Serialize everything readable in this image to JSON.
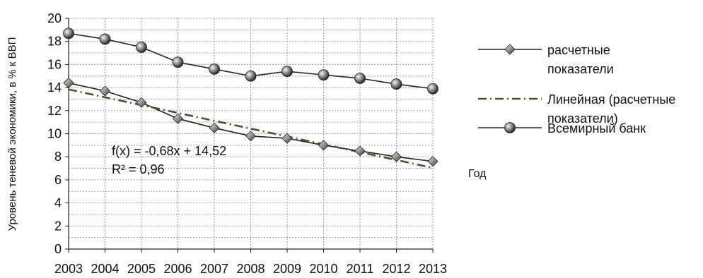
{
  "chart_data": {
    "type": "line",
    "title": "",
    "xlabel": "Год",
    "ylabel": "Уровень теневой экономики, в % к ВВП",
    "ylim": [
      0,
      20
    ],
    "y_ticks": [
      0,
      2,
      4,
      6,
      8,
      10,
      12,
      14,
      16,
      18,
      20
    ],
    "grid": true,
    "legend_position": "right",
    "x": [
      2003,
      2004,
      2005,
      2006,
      2007,
      2008,
      2009,
      2010,
      2011,
      2012,
      2013
    ],
    "series": [
      {
        "name": "расчетные показатели",
        "marker": "diamond",
        "color": "#222222",
        "values": [
          14.4,
          13.7,
          12.7,
          11.3,
          10.5,
          9.8,
          9.6,
          9.0,
          8.5,
          8.0,
          7.6
        ]
      },
      {
        "name": "Линейная (расчетные показатели)",
        "style": "dash-dot",
        "color": "#3a5a2a",
        "slope": -0.68,
        "intercept": 14.52,
        "values": [
          13.84,
          13.16,
          12.48,
          11.8,
          11.12,
          10.44,
          9.76,
          9.08,
          8.4,
          7.72,
          7.04
        ]
      },
      {
        "name": "Всемирный банк",
        "marker": "sphere",
        "color": "#222222",
        "values": [
          18.7,
          18.2,
          17.5,
          16.2,
          15.6,
          15.0,
          15.4,
          15.1,
          14.8,
          14.3,
          13.9
        ]
      }
    ],
    "legend_items": [
      {
        "lines": [
          "расчетные",
          "показатели"
        ]
      },
      {
        "lines": [
          "Линейная (расчетные",
          "показатели)"
        ]
      },
      {
        "lines": [
          "Всемирный банк"
        ]
      }
    ],
    "annotations": [
      "f(x) = -0,68x + 14,52",
      "R² = 0,96"
    ]
  }
}
